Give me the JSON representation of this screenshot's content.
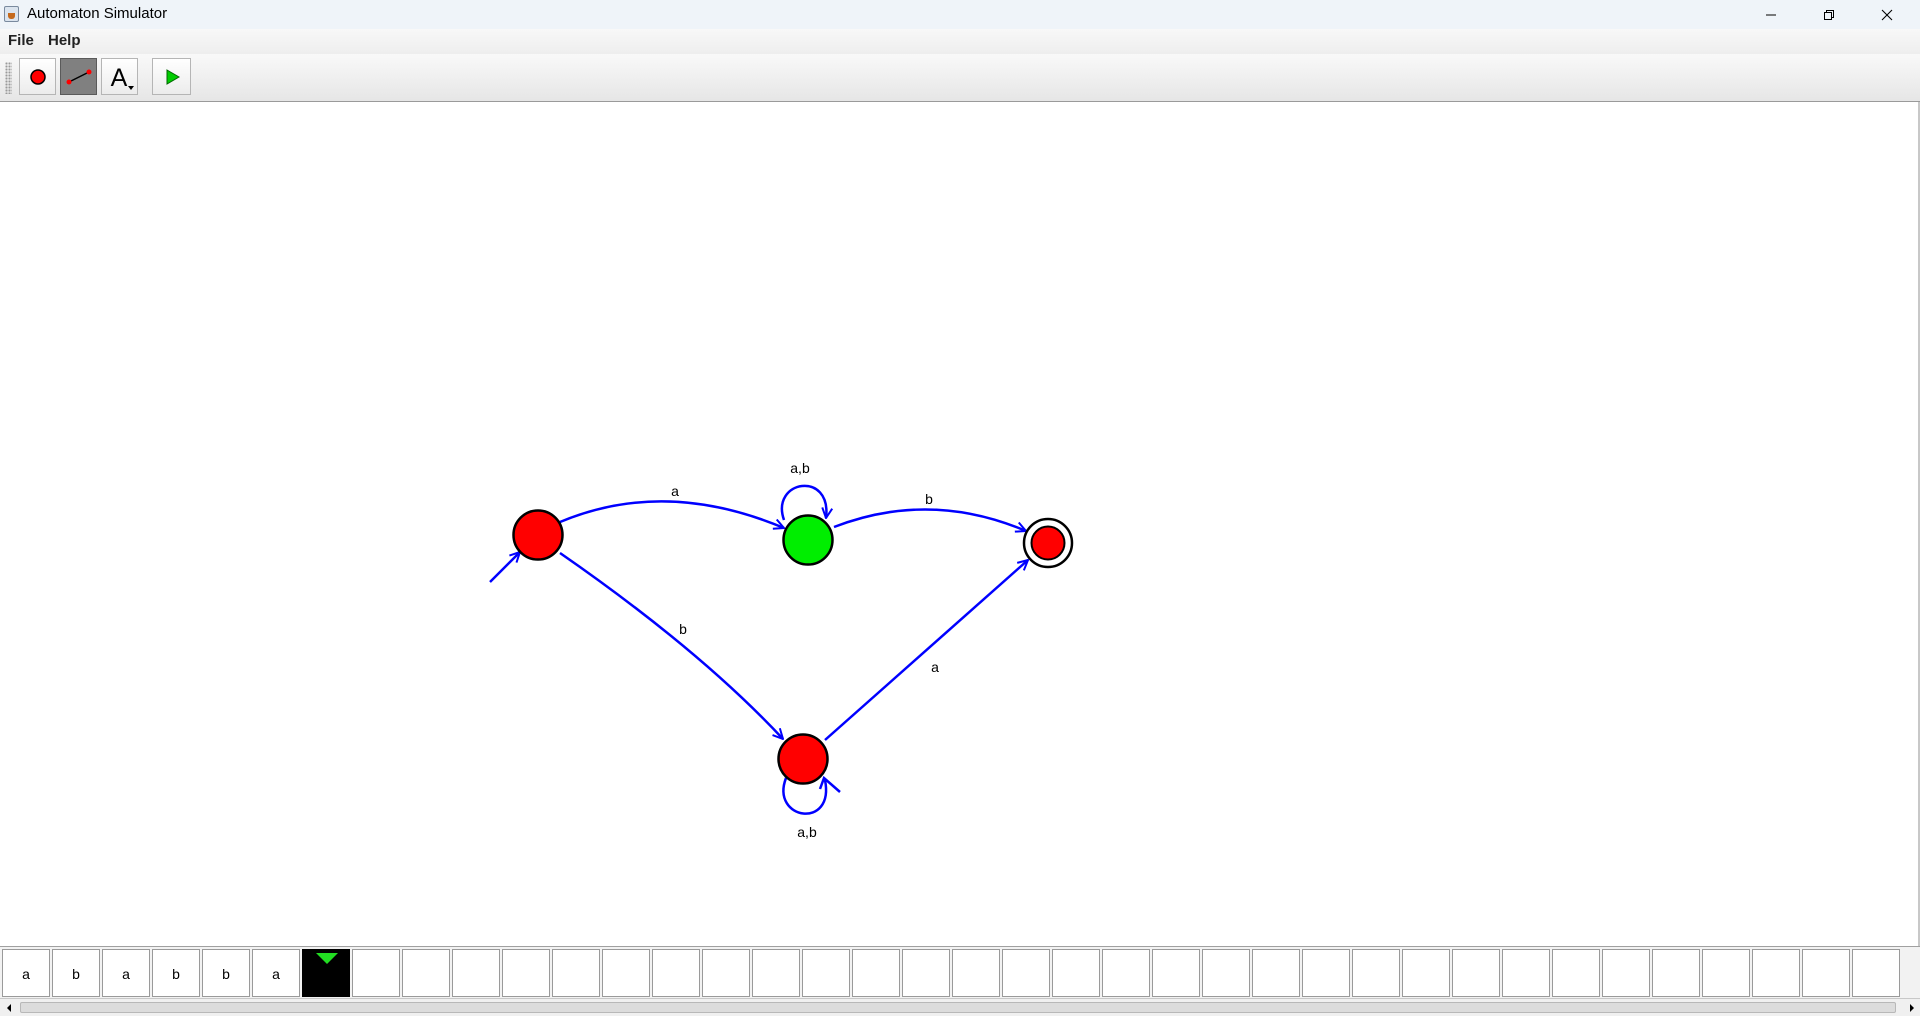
{
  "window": {
    "title": "Automaton Simulator",
    "controls": [
      "minimize-icon",
      "restore-icon",
      "close-icon"
    ]
  },
  "menu": {
    "file": "File",
    "help": "Help"
  },
  "toolbar": {
    "tools": [
      {
        "name": "add-state",
        "icon": "red-dot-icon"
      },
      {
        "name": "add-transition",
        "icon": "edge-icon",
        "active": true
      },
      {
        "name": "text-tool",
        "icon": "letter-a-icon",
        "glyph": "A"
      },
      {
        "name": "run",
        "icon": "play-icon"
      }
    ]
  },
  "automaton": {
    "colors": {
      "state_fill": "#ff0000",
      "current_state_fill": "#00ee00",
      "transition": "#0000ff"
    },
    "states": [
      {
        "id": "q0",
        "initial": true,
        "accepting": false,
        "current": false
      },
      {
        "id": "q1",
        "initial": false,
        "accepting": false,
        "current": true
      },
      {
        "id": "q2",
        "initial": false,
        "accepting": true,
        "current": false
      },
      {
        "id": "q3",
        "initial": false,
        "accepting": false,
        "current": false
      }
    ],
    "transitions": [
      {
        "from": "q0",
        "to": "q1",
        "label": "a"
      },
      {
        "from": "q1",
        "to": "q1",
        "label": "a,b"
      },
      {
        "from": "q1",
        "to": "q2",
        "label": "b"
      },
      {
        "from": "q0",
        "to": "q3",
        "label": "b"
      },
      {
        "from": "q3",
        "to": "q2",
        "label": "a"
      },
      {
        "from": "q3",
        "to": "q3",
        "label": "a,b"
      }
    ]
  },
  "tape": {
    "symbols": [
      "a",
      "b",
      "a",
      "b",
      "b",
      "a"
    ],
    "head_index": 6,
    "head_color": "#22dd22"
  }
}
